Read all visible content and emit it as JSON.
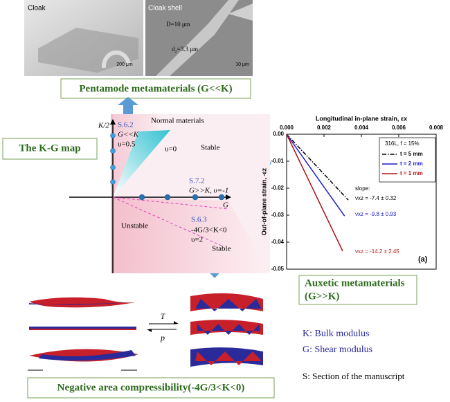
{
  "top_panel": {
    "label_left": "Cloak",
    "label_right": "Cloak shell",
    "scale_left": "200 μm",
    "scale_right": "10 μm",
    "dim_D": "D=10 μm",
    "dim_d": "d₂=3.3 μm"
  },
  "pentamode": "Pentamode metamaterials (G<<K)",
  "kg_map": {
    "title": "The K-G map",
    "axis_y": "K/2",
    "axis_x": "G",
    "s62": "S.6.2",
    "s62_cond": "G<<K",
    "s62_nu": "υ=0.5",
    "normal": "Normal materials",
    "nu0": "υ=0",
    "stable_top": "Stable",
    "s72": "S.7.2",
    "s72_cond": "G>>K, υ=-1",
    "unstable": "Unstable",
    "s63": "S.6.3",
    "s63_cond": "-4G/3<K<0",
    "s63_nu": "υ=2",
    "stable_bottom": "Stable"
  },
  "chart_data": {
    "type": "line",
    "x_label": "Longitudinal in-plane strain, εx",
    "y_label": "Out-of-plane strain, -εz",
    "xlim": [
      0,
      0.008
    ],
    "xticks": [
      {
        "value": 0,
        "label": "0.000"
      },
      0.002,
      0.004,
      0.006,
      0.008
    ],
    "ylim": [
      -0.05,
      0
    ],
    "yticks": [
      {
        "value": 0,
        "label": "0.00"
      },
      -0.01,
      -0.02,
      -0.03,
      -0.04,
      -0.05
    ],
    "legend_title": "316L, f = 15%",
    "series": [
      {
        "name": "t = 5 mm",
        "color": "#000000",
        "linestyle": "dashdot",
        "x": [
          0,
          0.0033
        ],
        "values": [
          0,
          -0.0244
        ]
      },
      {
        "name": "t = 2 mm",
        "color": "#1a1acc",
        "linestyle": "solid",
        "x": [
          0,
          0.0031
        ],
        "values": [
          0,
          -0.0303
        ]
      },
      {
        "name": "t = 1 mm",
        "color": "#b01010",
        "linestyle": "solid",
        "x": [
          0,
          0.003
        ],
        "values": [
          0,
          -0.0433
        ]
      }
    ],
    "annotations": [
      {
        "text": "slope:",
        "color": "#000000"
      },
      {
        "text": "νxz = -7.4 ± 0.32",
        "color": "#000000"
      },
      {
        "text": "νxz = -9.8 ± 0.93",
        "color": "#1a1acc"
      },
      {
        "text": "νxz = -14.2 ± 2.45",
        "color": "#b01010"
      }
    ],
    "panel_label": "(a)"
  },
  "auxetic": [
    "Auxetic metamaterials",
    "(G>>K)"
  ],
  "nac": "Negative area compressibility(-4G/3<K<0)",
  "arrows": {
    "T": "T",
    "p": "p"
  },
  "notes": [
    "K: Bulk modulus",
    "G: Shear modulus",
    "S: Section of the manuscript"
  ]
}
